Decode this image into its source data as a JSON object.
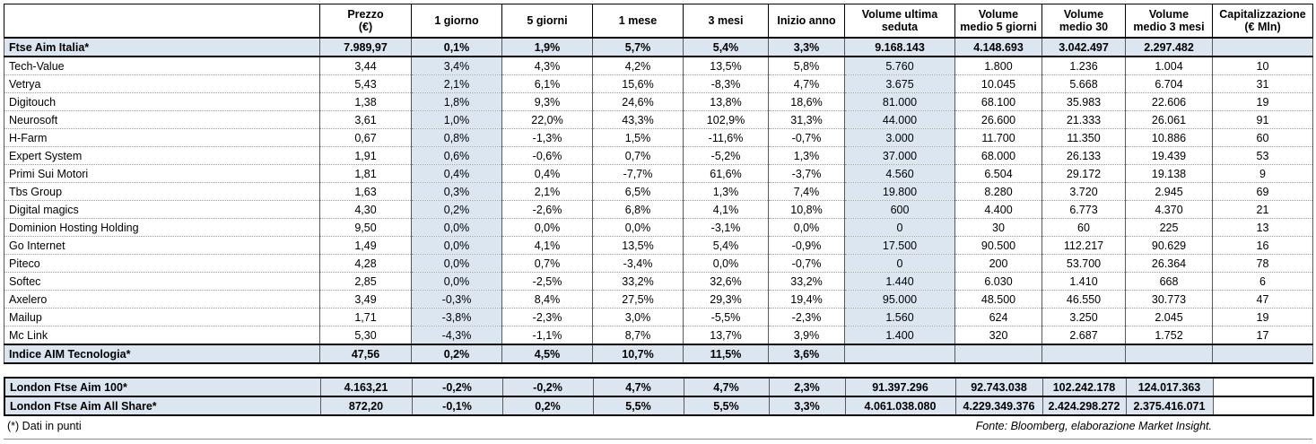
{
  "chart_data": {
    "type": "table",
    "header": [
      {
        "lines": [
          ""
        ]
      },
      {
        "lines": [
          "Prezzo",
          "(€)"
        ]
      },
      {
        "lines": [
          "1 giorno"
        ]
      },
      {
        "lines": [
          "5 giorni"
        ]
      },
      {
        "lines": [
          "1 mese"
        ]
      },
      {
        "lines": [
          "3 mesi"
        ]
      },
      {
        "lines": [
          "Inizio anno"
        ]
      },
      {
        "lines": [
          "Volume ultima",
          "seduta"
        ]
      },
      {
        "lines": [
          "Volume",
          "medio 5 giorni"
        ]
      },
      {
        "lines": [
          "Volume",
          "medio 30"
        ]
      },
      {
        "lines": [
          "Volume",
          "medio 3 mesi"
        ]
      },
      {
        "lines": [
          "Capitalizzazione",
          "(€ Mln)"
        ]
      }
    ],
    "rows": [
      {
        "name": "Ftse Aim Italia*",
        "index": true,
        "cells": [
          "7.989,97",
          "0,1%",
          "1,9%",
          "5,7%",
          "5,4%",
          "3,3%",
          "9.168.143",
          "4.148.693",
          "3.042.497",
          "2.297.482",
          ""
        ]
      },
      {
        "name": "Tech-Value",
        "cells": [
          "3,44",
          "3,4%",
          "4,3%",
          "4,2%",
          "13,5%",
          "5,8%",
          "5.760",
          "1.800",
          "1.236",
          "1.004",
          "10"
        ]
      },
      {
        "name": "Vetrya",
        "cells": [
          "5,43",
          "2,1%",
          "6,1%",
          "15,6%",
          "-8,3%",
          "4,7%",
          "3.675",
          "10.045",
          "5.668",
          "6.704",
          "31"
        ]
      },
      {
        "name": "Digitouch",
        "cells": [
          "1,38",
          "1,8%",
          "9,3%",
          "24,6%",
          "13,8%",
          "18,6%",
          "81.000",
          "68.100",
          "35.983",
          "22.606",
          "19"
        ]
      },
      {
        "name": "Neurosoft",
        "cells": [
          "3,61",
          "1,0%",
          "22,0%",
          "43,3%",
          "102,9%",
          "31,3%",
          "44.000",
          "26.600",
          "21.333",
          "26.061",
          "91"
        ]
      },
      {
        "name": "H-Farm",
        "cells": [
          "0,67",
          "0,8%",
          "-1,3%",
          "1,5%",
          "-11,6%",
          "-0,7%",
          "3.000",
          "11.700",
          "11.350",
          "10.886",
          "60"
        ]
      },
      {
        "name": "Expert System",
        "cells": [
          "1,91",
          "0,6%",
          "-0,6%",
          "0,7%",
          "-5,2%",
          "1,3%",
          "37.000",
          "68.000",
          "26.133",
          "19.439",
          "53"
        ]
      },
      {
        "name": "Primi Sui Motori",
        "cells": [
          "1,81",
          "0,4%",
          "0,4%",
          "-7,7%",
          "61,6%",
          "-3,7%",
          "4.560",
          "6.504",
          "29.172",
          "19.138",
          "9"
        ]
      },
      {
        "name": "Tbs Group",
        "cells": [
          "1,63",
          "0,3%",
          "2,1%",
          "6,5%",
          "1,3%",
          "7,4%",
          "19.800",
          "8.280",
          "3.720",
          "2.945",
          "69"
        ]
      },
      {
        "name": "Digital magics",
        "cells": [
          "4,30",
          "0,2%",
          "-2,6%",
          "6,8%",
          "4,1%",
          "10,8%",
          "600",
          "4.400",
          "6.773",
          "4.370",
          "21"
        ]
      },
      {
        "name": "Dominion Hosting Holding",
        "cells": [
          "9,50",
          "0,0%",
          "0,0%",
          "0,0%",
          "-3,1%",
          "0,0%",
          "0",
          "30",
          "60",
          "225",
          "13"
        ]
      },
      {
        "name": "Go Internet",
        "cells": [
          "1,49",
          "0,0%",
          "4,1%",
          "13,5%",
          "5,4%",
          "-0,9%",
          "17.500",
          "90.500",
          "112.217",
          "90.629",
          "16"
        ]
      },
      {
        "name": "Piteco",
        "cells": [
          "4,28",
          "0,0%",
          "0,7%",
          "-3,4%",
          "0,0%",
          "-0,7%",
          "0",
          "200",
          "53.700",
          "26.364",
          "78"
        ]
      },
      {
        "name": "Softec",
        "cells": [
          "2,85",
          "0,0%",
          "-2,5%",
          "33,2%",
          "32,6%",
          "33,2%",
          "1.440",
          "6.030",
          "1.410",
          "668",
          "6"
        ]
      },
      {
        "name": "Axelero",
        "cells": [
          "3,49",
          "-0,3%",
          "8,4%",
          "27,5%",
          "29,3%",
          "19,4%",
          "95.000",
          "48.500",
          "46.550",
          "30.773",
          "47"
        ]
      },
      {
        "name": "Mailup",
        "cells": [
          "1,71",
          "-3,8%",
          "-2,3%",
          "3,0%",
          "-5,5%",
          "-2,3%",
          "1.560",
          "624",
          "3.250",
          "2.045",
          "19"
        ]
      },
      {
        "name": "Mc Link",
        "cells": [
          "5,30",
          "-4,3%",
          "-1,1%",
          "8,7%",
          "13,7%",
          "3,9%",
          "1.400",
          "320",
          "2.687",
          "1.752",
          "17"
        ]
      },
      {
        "name": "Indice AIM Tecnologia*",
        "index": true,
        "cells": [
          "47,56",
          "0,2%",
          "4,5%",
          "10,7%",
          "11,5%",
          "3,6%",
          "",
          "",
          "",
          "",
          ""
        ]
      }
    ],
    "london_rows": [
      {
        "name": "London Ftse Aim 100*",
        "index": true,
        "cells": [
          "4.163,21",
          "-0,2%",
          "-0,2%",
          "4,7%",
          "4,7%",
          "2,3%",
          "91.397.296",
          "92.743.038",
          "102.242.178",
          "124.017.363",
          ""
        ]
      },
      {
        "name": "London Ftse Aim All Share*",
        "index": true,
        "cells": [
          "872,20",
          "-0,1%",
          "0,2%",
          "5,5%",
          "5,5%",
          "3,3%",
          "4.061.038.080",
          "4.229.349.376",
          "2.424.298.272",
          "2.375.416.071",
          ""
        ]
      }
    ],
    "highlight_color": "#dce6f1",
    "highlighted_columns": [
      "1 giorno",
      "Volume ultima seduta"
    ]
  },
  "footer": {
    "left": "(*) Dati in punti",
    "right": "Fonte: Bloomberg, elaborazione Market Insight."
  }
}
